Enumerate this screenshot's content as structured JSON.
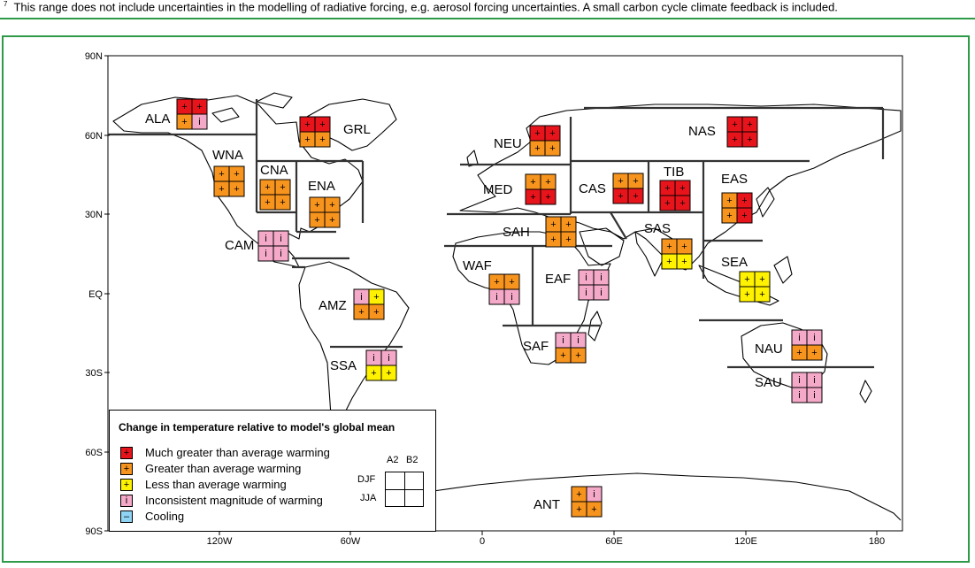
{
  "footnote": {
    "marker": "7",
    "text": "This range does not include uncertainties in the modelling of radiative forcing, e.g. aerosol forcing uncertainties. A small carbon cycle climate feedback is included."
  },
  "axes": {
    "y_ticks": [
      "90N",
      "60N",
      "30N",
      "EQ",
      "30S",
      "60S",
      "90S"
    ],
    "x_ticks": [
      "120W",
      "60W",
      "0",
      "60E",
      "120E",
      "180"
    ]
  },
  "colors": {
    "much_greater": "#e8141c",
    "greater": "#f7941d",
    "less": "#fff200",
    "inconsistent": "#f5a9c8",
    "cooling": "#8fd3f5"
  },
  "regions": [
    {
      "name": "ALA",
      "cells": [
        "much_greater",
        "much_greater",
        "greater",
        "inconsistent"
      ]
    },
    {
      "name": "GRL",
      "cells": [
        "much_greater",
        "much_greater",
        "greater",
        "greater"
      ]
    },
    {
      "name": "WNA",
      "cells": [
        "greater",
        "greater",
        "greater",
        "greater"
      ]
    },
    {
      "name": "CNA",
      "cells": [
        "greater",
        "greater",
        "greater",
        "greater"
      ]
    },
    {
      "name": "ENA",
      "cells": [
        "greater",
        "greater",
        "greater",
        "greater"
      ]
    },
    {
      "name": "CAM",
      "cells": [
        "inconsistent",
        "inconsistent",
        "inconsistent",
        "inconsistent"
      ]
    },
    {
      "name": "AMZ",
      "cells": [
        "inconsistent",
        "less",
        "greater",
        "greater"
      ]
    },
    {
      "name": "SSA",
      "cells": [
        "inconsistent",
        "inconsistent",
        "less",
        "less"
      ]
    },
    {
      "name": "NEU",
      "cells": [
        "much_greater",
        "much_greater",
        "greater",
        "greater"
      ]
    },
    {
      "name": "MED",
      "cells": [
        "greater",
        "greater",
        "much_greater",
        "much_greater"
      ]
    },
    {
      "name": "SAH",
      "cells": [
        "greater",
        "greater",
        "greater",
        "greater"
      ]
    },
    {
      "name": "WAF",
      "cells": [
        "greater",
        "greater",
        "inconsistent",
        "inconsistent"
      ]
    },
    {
      "name": "EAF",
      "cells": [
        "inconsistent",
        "inconsistent",
        "inconsistent",
        "inconsistent"
      ]
    },
    {
      "name": "SAF",
      "cells": [
        "inconsistent",
        "inconsistent",
        "greater",
        "greater"
      ]
    },
    {
      "name": "NAS",
      "cells": [
        "much_greater",
        "much_greater",
        "much_greater",
        "much_greater"
      ]
    },
    {
      "name": "CAS",
      "cells": [
        "greater",
        "greater",
        "much_greater",
        "much_greater"
      ]
    },
    {
      "name": "TIB",
      "cells": [
        "much_greater",
        "much_greater",
        "much_greater",
        "much_greater"
      ]
    },
    {
      "name": "EAS",
      "cells": [
        "greater",
        "much_greater",
        "greater",
        "much_greater"
      ]
    },
    {
      "name": "SAS",
      "cells": [
        "greater",
        "greater",
        "less",
        "less"
      ]
    },
    {
      "name": "SEA",
      "cells": [
        "less",
        "less",
        "less",
        "less"
      ]
    },
    {
      "name": "NAU",
      "cells": [
        "inconsistent",
        "inconsistent",
        "greater",
        "greater"
      ]
    },
    {
      "name": "SAU",
      "cells": [
        "inconsistent",
        "inconsistent",
        "inconsistent",
        "inconsistent"
      ]
    },
    {
      "name": "ANT",
      "cells": [
        "greater",
        "inconsistent",
        "greater",
        "greater"
      ]
    }
  ],
  "legend": {
    "title": "Change in temperature relative to model's global mean",
    "items": [
      {
        "key": "much_greater",
        "symbol": "+",
        "label": "Much greater than average warming"
      },
      {
        "key": "greater",
        "symbol": "+",
        "label": "Greater than average warming"
      },
      {
        "key": "less",
        "symbol": "+",
        "label": "Less than average warming"
      },
      {
        "key": "inconsistent",
        "symbol": "i",
        "label": "Inconsistent magnitude of warming"
      },
      {
        "key": "cooling",
        "symbol": "–",
        "label": "Cooling"
      }
    ],
    "key_columns": [
      "A2",
      "B2"
    ],
    "key_rows": [
      "DJF",
      "JJA"
    ]
  }
}
